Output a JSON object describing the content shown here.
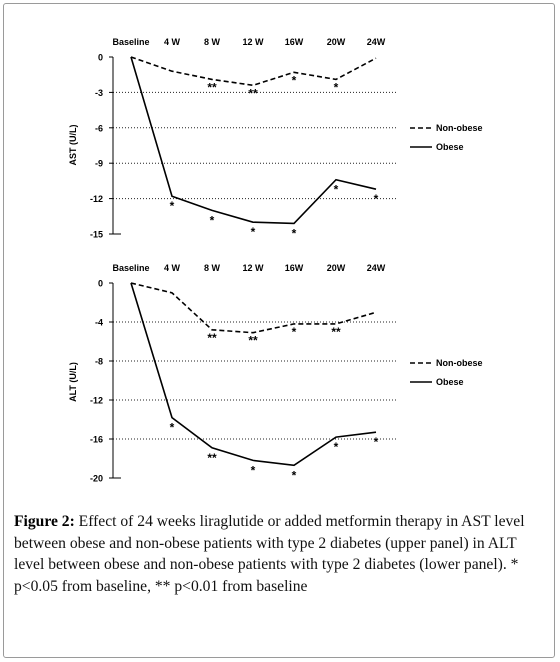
{
  "chart_data": [
    {
      "type": "line",
      "categories": [
        "Baseline",
        "4 W",
        "8 W",
        "12 W",
        "16W",
        "20W",
        "24W"
      ],
      "ylabel": "AST (U/L)",
      "ylim": [
        -15,
        0
      ],
      "yticks": [
        0,
        -3,
        -6,
        -9,
        -12,
        -15
      ],
      "grid": "horizontal dotted",
      "legend_position": "right",
      "series": [
        {
          "name": "Non-obese",
          "dash": "dashed",
          "values": [
            0,
            -1.2,
            -1.9,
            -2.4,
            -1.3,
            -1.9,
            -0.1
          ],
          "marks": [
            "",
            "",
            "**",
            "**",
            "*",
            "*",
            ""
          ]
        },
        {
          "name": "Obese",
          "dash": "solid",
          "values": [
            0,
            -11.8,
            -13.0,
            -14.0,
            -14.1,
            -10.4,
            -11.2
          ],
          "marks": [
            "",
            "*",
            "*",
            "*",
            "*",
            "*",
            "*"
          ]
        }
      ]
    },
    {
      "type": "line",
      "categories": [
        "Baseline",
        "4 W",
        "8 W",
        "12 W",
        "16W",
        "20W",
        "24W"
      ],
      "ylabel": "ALT (U/L)",
      "ylim": [
        -20,
        0
      ],
      "yticks": [
        0,
        -4,
        -8,
        -12,
        -16,
        -20
      ],
      "grid": "horizontal dotted",
      "legend_position": "right",
      "series": [
        {
          "name": "Non-obese",
          "dash": "dashed",
          "values": [
            0,
            -1.0,
            -4.8,
            -5.1,
            -4.2,
            -4.2,
            -3.0
          ],
          "marks": [
            "",
            "",
            "**",
            "**",
            "*",
            "**",
            ""
          ]
        },
        {
          "name": "Obese",
          "dash": "solid",
          "values": [
            0,
            -13.8,
            -16.9,
            -18.2,
            -18.7,
            -15.8,
            -15.3
          ],
          "marks": [
            "",
            "*",
            "**",
            "*",
            "*",
            "*",
            "*"
          ]
        }
      ]
    }
  ],
  "caption": {
    "label": "Figure 2:",
    "text": " Effect of 24 weeks liraglutide or added metformin therapy in AST level between obese and non-obese patients with type 2 diabetes (upper panel) in ALT level between obese and non-obese patients with type 2 diabetes (lower panel). * p<0.05 from baseline, ** p<0.01 from baseline"
  }
}
